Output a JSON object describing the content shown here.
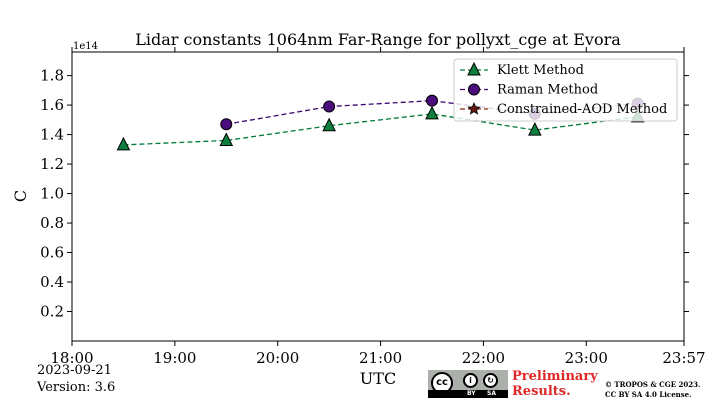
{
  "chart_data": {
    "type": "line",
    "title": "Lidar constants 1064nm Far-Range for pollyxt_cge at Evora",
    "xlabel": "UTC",
    "ylabel": "C",
    "y_offset_label": "1e14",
    "x_ticks": [
      "18:00",
      "19:00",
      "20:00",
      "21:00",
      "22:00",
      "23:00",
      "23:57"
    ],
    "x_tick_hours": [
      18.0,
      19.0,
      20.0,
      21.0,
      22.0,
      23.0,
      23.95
    ],
    "xlim_hours": [
      18.0,
      23.95
    ],
    "y_ticks": [
      "0.2",
      "0.4",
      "0.6",
      "0.8",
      "1.0",
      "1.2",
      "1.4",
      "1.6",
      "1.8"
    ],
    "ylim": [
      0.0,
      1.96
    ],
    "legend_position": "top-right",
    "series": [
      {
        "name": "Klett Method",
        "marker": "triangle",
        "line_color": "#007b3a",
        "marker_color": "#0d8040",
        "x_hours": [
          18.5,
          19.5,
          20.5,
          21.5,
          22.5,
          23.5
        ],
        "values": [
          1.33,
          1.36,
          1.46,
          1.54,
          1.43,
          1.52
        ]
      },
      {
        "name": "Raman Method",
        "marker": "circle",
        "line_color": "#3a0a70",
        "marker_color": "#4b0c7e",
        "x_hours": [
          19.5,
          20.5,
          21.5,
          22.5,
          23.5
        ],
        "values": [
          1.47,
          1.59,
          1.63,
          1.54,
          1.61
        ]
      },
      {
        "name": "Constrained-AOD Method",
        "marker": "star",
        "line_color": "#8b2a10",
        "marker_color": "#6a1a10",
        "x_hours": [],
        "values": []
      }
    ]
  },
  "footer": {
    "date": "2023-09-21",
    "version": "Version: 3.6",
    "preliminary_line1": "Preliminary",
    "preliminary_line2": "Results.",
    "copyright_line1": "© TROPOS & CGE 2023.",
    "copyright_line2": "CC BY SA 4.0 License.",
    "cc_label": "cc",
    "by_label": "BY",
    "sa_label": "SA"
  }
}
